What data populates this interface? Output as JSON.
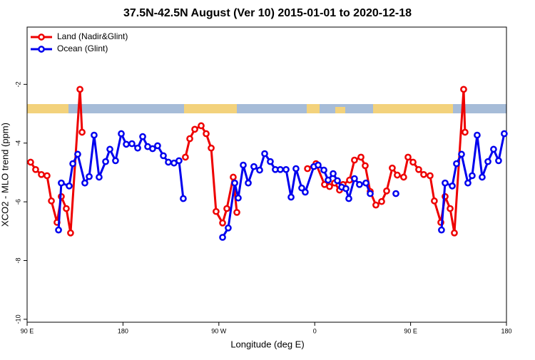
{
  "chart_data": {
    "type": "line",
    "title": "37.5N-42.5N August (Ver 10)   2015-01-01 to 2020-12-18",
    "x_label": "Longitude (deg E)",
    "y_label": "XCO2 - MLO trend (ppm)",
    "xlim": [
      90,
      540
    ],
    "ylim": [
      -10.1,
      -0.05
    ],
    "xticks": [
      {
        "value": 90,
        "label": "90 E"
      },
      {
        "value": 180,
        "label": "180"
      },
      {
        "value": 270,
        "label": "90 W"
      },
      {
        "value": 360,
        "label": "0"
      },
      {
        "value": 450,
        "label": "90 E"
      },
      {
        "value": 540,
        "label": "180"
      }
    ],
    "yticks": [
      -10,
      -8,
      -6,
      -4,
      -2
    ],
    "legend": "top-left",
    "series": [
      {
        "name": "Land (Nadir&Glint)",
        "color": "#ee0000",
        "x": [
          93.3,
          98.0,
          103.4,
          108.7,
          112.8,
          118.1,
          122.1,
          126.8,
          130.8,
          139.6,
          141.6,
          null,
          238.6,
          242.7,
          247.4,
          253.4,
          258.1,
          262.8,
          267.4,
          273.5,
          277.5,
          283.5,
          286.9,
          null,
          353.2,
          361.2,
          369.2,
          373.9,
          378.6,
          383.3,
          386.6,
          392.7,
          397.3,
          403.4,
          407.4,
          412.1,
          417.4,
          422.8,
          427.5,
          432.8,
          437.5,
          443.5,
          447.6,
          452.3,
          457.6,
          462.3,
          468.3,
          472.3,
          478.4,
          482.4,
          487.1,
          491.1,
          499.8,
          501.1
        ],
        "values": [
          -4.65,
          -4.9,
          -5.07,
          -5.11,
          -5.97,
          -6.7,
          -5.82,
          -6.23,
          -7.06,
          -2.17,
          -3.63,
          null,
          -4.48,
          -3.85,
          -3.53,
          -3.41,
          -3.68,
          -4.17,
          -6.33,
          -6.72,
          -6.23,
          -5.16,
          -6.36,
          null,
          -4.87,
          -4.7,
          -5.41,
          -5.48,
          -5.36,
          -5.6,
          -5.41,
          -5.26,
          -4.58,
          -4.48,
          -4.77,
          -5.65,
          -6.11,
          -5.99,
          -5.63,
          -4.85,
          -5.09,
          -5.16,
          -4.48,
          -4.65,
          -4.9,
          -5.07,
          -5.11,
          -5.97,
          -6.7,
          -5.82,
          -6.23,
          -7.06,
          -2.17,
          -3.63
        ]
      },
      {
        "name": "Ocean (Glint)",
        "color": "#0000ee",
        "x": [
          119.5,
          122.1,
          129.5,
          132.9,
          137.5,
          144.2,
          148.3,
          152.9,
          157.6,
          163.7,
          167.7,
          173.0,
          178.4,
          183.1,
          188.4,
          193.8,
          198.5,
          203.2,
          207.8,
          212.5,
          217.9,
          222.6,
          227.9,
          232.6,
          236.6,
          null,
          273.5,
          278.8,
          284.9,
          288.2,
          292.9,
          297.6,
          302.9,
          308.3,
          313.0,
          318.3,
          323.0,
          327.7,
          333.1,
          337.8,
          342.4,
          347.8,
          351.1,
          359.2,
          363.2,
          368.6,
          372.6,
          377.3,
          381.3,
          385.3,
          389.3,
          392.0,
          397.3,
          402.0,
          408.1,
          412.1,
          null,
          436.2,
          null,
          479.0,
          482.4,
          489.1,
          493.1,
          497.8,
          503.8,
          507.8,
          512.5,
          517.2,
          522.6,
          527.9,
          532.6,
          537.9
        ],
        "values": [
          -6.96,
          -5.36,
          -5.46,
          -4.7,
          -4.38,
          -5.36,
          -5.14,
          -3.73,
          -5.16,
          -4.63,
          -4.21,
          -4.6,
          -3.68,
          -4.04,
          -4.02,
          -4.17,
          -3.78,
          -4.12,
          -4.19,
          -4.09,
          -4.43,
          -4.65,
          -4.68,
          -4.6,
          -5.89,
          null,
          -7.21,
          -6.89,
          -5.36,
          -5.87,
          -4.75,
          -5.36,
          -4.8,
          -4.92,
          -4.36,
          -4.63,
          -4.9,
          -4.9,
          -4.9,
          -5.84,
          -4.87,
          -5.53,
          -5.67,
          -4.8,
          -4.75,
          -4.92,
          -5.26,
          -5.04,
          -5.28,
          -5.5,
          -5.55,
          -5.89,
          -5.21,
          -5.41,
          -5.36,
          -5.72,
          null,
          -5.72,
          null,
          -6.96,
          -5.36,
          -5.46,
          -4.7,
          -4.38,
          -5.36,
          -5.11,
          -3.73,
          -5.16,
          -4.63,
          -4.21,
          -4.6,
          -3.68
        ]
      }
    ]
  }
}
